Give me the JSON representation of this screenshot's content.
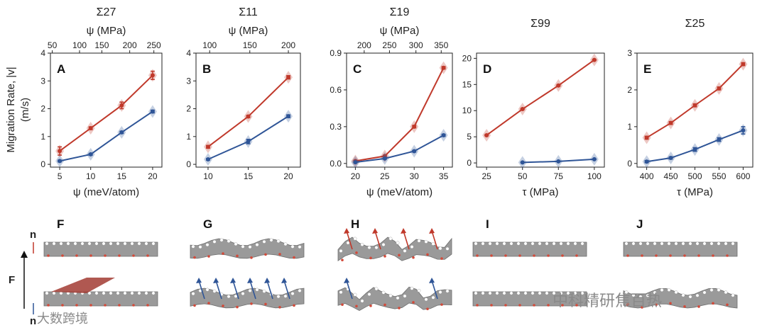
{
  "figure": {
    "y_label_line1": "Migration Rate, |v|",
    "y_label_line2": "(m/s)",
    "colors": {
      "red": "#c0392b",
      "blue": "#2f5597",
      "sheet": "#9a9a9a",
      "sheet_dark": "#6f6f6f",
      "atom_red": "#d24a3a"
    },
    "force_label": "F",
    "normal_label_top": "n",
    "normal_label_bottom": "n",
    "watermark_left": "大数跨境",
    "watermark_right": "中科精研焦百热",
    "bottom_panels": [
      {
        "label": "F",
        "top": "flat",
        "bottom": "step",
        "top_arrows": "none",
        "bottom_arrows": "none"
      },
      {
        "label": "G",
        "top": "wavy",
        "bottom": "wavy",
        "top_arrows": "none",
        "bottom_arrows": "blue"
      },
      {
        "label": "H",
        "top": "rumpled",
        "bottom": "rumpled",
        "top_arrows": "red",
        "bottom_arrows": "blue"
      },
      {
        "label": "I",
        "top": "flat",
        "bottom": "flat",
        "top_arrows": "none",
        "bottom_arrows": "none"
      },
      {
        "label": "J",
        "top": "flat",
        "bottom": "wavy",
        "top_arrows": "none",
        "bottom_arrows": "none"
      }
    ]
  },
  "chart_data": [
    {
      "type": "line",
      "panel": "A",
      "title": "Σ27",
      "xlabel": "ψ (meV/atom)",
      "ylabel": "Migration Rate, |v| (m/s)",
      "top_axis_label": "ψ (MPa)",
      "xlim": [
        3.5,
        21.5
      ],
      "ylim": [
        -0.1,
        4.0
      ],
      "xticks": [
        5,
        10,
        15,
        20
      ],
      "yticks": [
        0,
        1,
        2,
        3,
        4
      ],
      "top_ticks": [
        {
          "label": "50",
          "x": 3.8
        },
        {
          "label": "100",
          "x": 8.2
        },
        {
          "label": "150",
          "x": 11.8
        },
        {
          "label": "200",
          "x": 16.3
        },
        {
          "label": "250",
          "x": 20.2
        }
      ],
      "series": [
        {
          "name": "red",
          "x": [
            5,
            10,
            15,
            20
          ],
          "y": [
            0.48,
            1.3,
            2.12,
            3.2
          ],
          "err": [
            0.15,
            0.05,
            0.12,
            0.15
          ]
        },
        {
          "name": "blue",
          "x": [
            5,
            10,
            15,
            20
          ],
          "y": [
            0.12,
            0.36,
            1.15,
            1.9
          ],
          "err": [
            0.03,
            0.03,
            0.04,
            0.05
          ]
        }
      ]
    },
    {
      "type": "line",
      "panel": "B",
      "title": "Σ11",
      "xlabel": "",
      "ylabel": "",
      "top_axis_label": "ψ (MPa)",
      "xlim": [
        8.5,
        21.5
      ],
      "ylim": [
        -0.1,
        4.0
      ],
      "xticks": [
        10,
        15,
        20
      ],
      "yticks": [
        0,
        1,
        2,
        3,
        4
      ],
      "top_ticks": [
        {
          "label": "100",
          "x": 10.2
        },
        {
          "label": "150",
          "x": 15.2
        },
        {
          "label": "200",
          "x": 20.0
        }
      ],
      "series": [
        {
          "name": "red",
          "x": [
            10,
            15,
            20
          ],
          "y": [
            0.63,
            1.72,
            3.13
          ],
          "err": [
            0.05,
            0.04,
            0.06
          ]
        },
        {
          "name": "blue",
          "x": [
            10,
            15,
            20
          ],
          "y": [
            0.18,
            0.82,
            1.73
          ],
          "err": [
            0.03,
            0.08,
            0.05
          ]
        }
      ]
    },
    {
      "type": "line",
      "panel": "C",
      "title": "Σ19",
      "xlabel": "ψ (meV/atom)",
      "ylabel": "",
      "top_axis_label": "ψ (MPa)",
      "xlim": [
        18.5,
        36.5
      ],
      "ylim": [
        -0.03,
        0.9
      ],
      "xticks": [
        20,
        25,
        30,
        35
      ],
      "yticks": [
        0.0,
        0.3,
        0.6,
        0.9
      ],
      "ytick_labels": [
        "0.0",
        "0.3",
        "0.6",
        "0.9"
      ],
      "top_ticks": [
        {
          "label": "200",
          "x": 21.5
        },
        {
          "label": "250",
          "x": 25.8
        },
        {
          "label": "300",
          "x": 30.3
        },
        {
          "label": "350",
          "x": 34.6
        }
      ],
      "series": [
        {
          "name": "red",
          "x": [
            20,
            25,
            30,
            35
          ],
          "y": [
            0.02,
            0.06,
            0.3,
            0.78
          ],
          "err": [
            0.005,
            0.006,
            0.01,
            0.01
          ]
        },
        {
          "name": "blue",
          "x": [
            20,
            25,
            30,
            35
          ],
          "y": [
            0.01,
            0.04,
            0.1,
            0.23
          ],
          "err": [
            0.004,
            0.005,
            0.006,
            0.008
          ]
        }
      ]
    },
    {
      "type": "line",
      "panel": "D",
      "title": "Σ99",
      "xlabel": "τ (MPa)",
      "ylabel": "",
      "top_axis_label": "",
      "xlim": [
        18,
        107
      ],
      "ylim": [
        -0.8,
        21
      ],
      "xticks": [
        25,
        50,
        75,
        100
      ],
      "yticks": [
        0,
        5,
        10,
        15,
        20
      ],
      "top_ticks": [],
      "series": [
        {
          "name": "red",
          "x": [
            25,
            50,
            75,
            100
          ],
          "y": [
            5.3,
            10.3,
            14.8,
            19.7
          ],
          "err": [
            0.1,
            0.1,
            0.1,
            0.1
          ]
        },
        {
          "name": "blue",
          "x": [
            50,
            75,
            100
          ],
          "y": [
            0.1,
            0.3,
            0.7
          ],
          "err": [
            0.05,
            0.05,
            0.05
          ]
        }
      ]
    },
    {
      "type": "line",
      "panel": "E",
      "title": "Σ25",
      "xlabel": "τ (MPa)",
      "ylabel": "",
      "top_axis_label": "",
      "xlim": [
        380,
        620
      ],
      "ylim": [
        -0.1,
        3.0
      ],
      "xticks": [
        400,
        450,
        500,
        550,
        600
      ],
      "yticks": [
        0,
        1,
        2,
        3
      ],
      "top_ticks": [],
      "series": [
        {
          "name": "red",
          "x": [
            400,
            450,
            500,
            550,
            600
          ],
          "y": [
            0.7,
            1.1,
            1.58,
            2.04,
            2.7
          ],
          "err": [
            0.04,
            0.04,
            0.04,
            0.04,
            0.04
          ]
        },
        {
          "name": "blue",
          "x": [
            400,
            450,
            500,
            550,
            600
          ],
          "y": [
            0.05,
            0.15,
            0.38,
            0.65,
            0.9
          ],
          "err": [
            0.03,
            0.03,
            0.05,
            0.05,
            0.1
          ]
        }
      ]
    }
  ]
}
